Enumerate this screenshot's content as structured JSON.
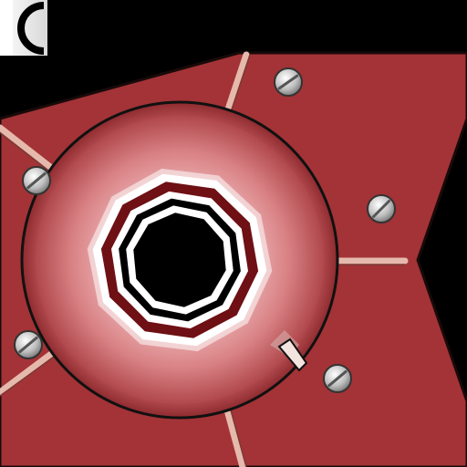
{
  "scene": {
    "name": "vault-door-dial-puzzle",
    "icons": {
      "back": "back-arc-icon",
      "screw": "screw-head-icon",
      "spoke": "metal-rod-icon",
      "pointer": "dial-pointer-icon"
    },
    "dial": {
      "rotation_deg": 0,
      "ring_layers": [
        "white",
        "dark-red",
        "white",
        "black",
        "white",
        "black"
      ]
    },
    "screws": [
      {
        "id": "screw-top-right"
      },
      {
        "id": "screw-left"
      },
      {
        "id": "screw-right"
      },
      {
        "id": "screw-bottom-left"
      },
      {
        "id": "screw-bottom-right"
      }
    ]
  },
  "colors": {
    "background": "#000000",
    "panel": "#a33336",
    "panel_edge": "#1a0a0a",
    "dial_rim": "#c9686c",
    "dial_face": "#e8a8aa",
    "ring_dark_red": "#6e1014",
    "spoke": "#e6b9ad",
    "screw": "#c8c8c8",
    "back_button": "#ffffff"
  }
}
